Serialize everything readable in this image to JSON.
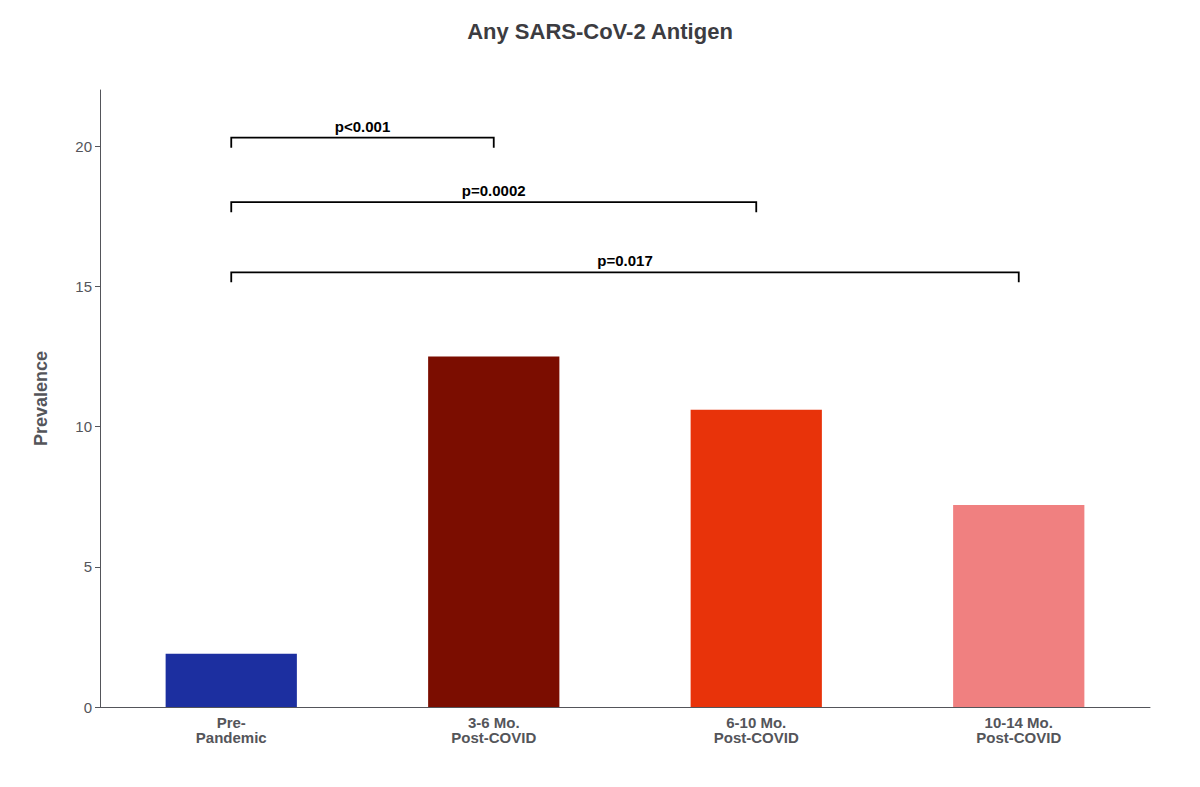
{
  "chart_data": {
    "type": "bar",
    "title": "Any SARS-CoV-2 Antigen",
    "categories": [
      "Pre-\nPandemic",
      "3-6 Mo.\nPost-COVID",
      "6-10 Mo.\nPost-COVID",
      "10-14 Mo.\nPost-COVID"
    ],
    "values": [
      1.9,
      12.5,
      10.6,
      7.2
    ],
    "colors": [
      "#1c2fa0",
      "#7b0d00",
      "#e8330a",
      "#f08080"
    ],
    "ylabel": "Prevalence",
    "ylim": [
      0,
      22
    ],
    "yticks": [
      0,
      5,
      10,
      15,
      20
    ],
    "grid": false,
    "annotations": [
      {
        "text": "p<0.001",
        "from": "Pre-\nPandemic",
        "to": "3-6 Mo.\nPost-COVID",
        "y": 20.3
      },
      {
        "text": "p=0.0002",
        "from": "Pre-\nPandemic",
        "to": "6-10 Mo.\nPost-COVID",
        "y": 18.0
      },
      {
        "text": "p=0.017",
        "from": "Pre-\nPandemic",
        "to": "10-14 Mo.\nPost-COVID",
        "y": 15.5
      }
    ]
  }
}
